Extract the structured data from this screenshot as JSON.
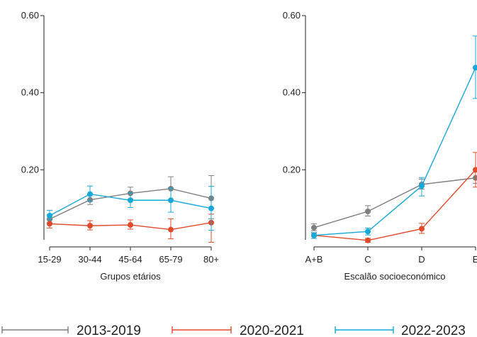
{
  "chart_data": [
    {
      "type": "line",
      "title": "",
      "xlabel": "Grupos etários",
      "ylabel": "",
      "categories": [
        "15-29",
        "30-44",
        "45-64",
        "65-79",
        "80+"
      ],
      "y_ticks": [
        "0.20",
        "0.40",
        "0.60"
      ],
      "y_tick_values": [
        0.2,
        0.4,
        0.6
      ],
      "ylim": [
        0,
        0.6
      ],
      "grid": false,
      "series": [
        {
          "name": "2013-2019",
          "values": [
            0.072,
            0.122,
            0.139,
            0.151,
            0.126
          ],
          "err_low": [
            0.063,
            0.11,
            0.124,
            0.12,
            0.073
          ],
          "err_high": [
            0.083,
            0.135,
            0.155,
            0.182,
            0.185
          ]
        },
        {
          "name": "2020-2021",
          "values": [
            0.06,
            0.055,
            0.057,
            0.045,
            0.063
          ],
          "err_low": [
            0.049,
            0.044,
            0.046,
            0.021,
            0.012
          ],
          "err_high": [
            0.07,
            0.068,
            0.07,
            0.073,
            0.085
          ]
        },
        {
          "name": "2022-2023",
          "values": [
            0.081,
            0.137,
            0.121,
            0.121,
            0.1
          ],
          "err_low": [
            0.07,
            0.118,
            0.102,
            0.09,
            0.043
          ],
          "err_high": [
            0.095,
            0.158,
            0.14,
            0.153,
            0.157
          ]
        }
      ]
    },
    {
      "type": "line",
      "title": "",
      "xlabel": "Escalão socioeconómico",
      "ylabel": "",
      "categories": [
        "A+B",
        "C",
        "D",
        "E"
      ],
      "y_ticks": [
        "0.20",
        "0.40",
        "0.60"
      ],
      "y_tick_values": [
        0.2,
        0.4,
        0.6
      ],
      "ylim": [
        0,
        0.6
      ],
      "grid": false,
      "series": [
        {
          "name": "2013-2019",
          "values": [
            0.05,
            0.092,
            0.162,
            0.179
          ],
          "err_low": [
            0.042,
            0.08,
            0.15,
            0.165
          ],
          "err_high": [
            0.06,
            0.107,
            0.176,
            0.194
          ]
        },
        {
          "name": "2020-2021",
          "values": [
            0.03,
            0.017,
            0.047,
            0.2
          ],
          "err_low": [
            0.022,
            0.012,
            0.035,
            0.155
          ],
          "err_high": [
            0.036,
            0.022,
            0.061,
            0.245
          ]
        },
        {
          "name": "2022-2023",
          "values": [
            0.03,
            0.04,
            0.158,
            0.465
          ],
          "err_low": [
            0.022,
            0.031,
            0.132,
            0.385
          ],
          "err_high": [
            0.037,
            0.049,
            0.18,
            0.547
          ]
        }
      ]
    }
  ],
  "legend": [
    {
      "label": "2013-2019",
      "color": "#7f7f7f"
    },
    {
      "label": "2020-2021",
      "color": "#e34a2b"
    },
    {
      "label": "2022-2023",
      "color": "#15a8d8"
    }
  ],
  "colors": {
    "2013-2019": "#7f7f7f",
    "2020-2021": "#e34a2b",
    "2022-2023": "#15a8d8"
  }
}
